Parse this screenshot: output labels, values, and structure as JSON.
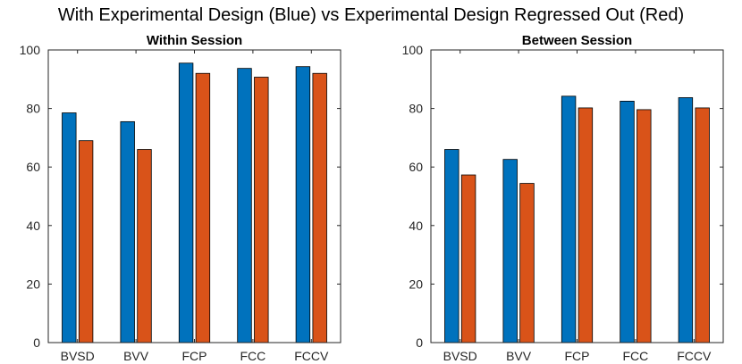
{
  "figure_title": "With Experimental Design (Blue) vs Experimental Design Regressed Out (Red)",
  "colors": {
    "series_1": "#0072BD",
    "series_2": "#D95319"
  },
  "chart_data": [
    {
      "type": "bar",
      "title": "Within Session",
      "categories": [
        "BVSD",
        "BVV",
        "FCP",
        "FCC",
        "FCCV"
      ],
      "series": [
        {
          "name": "With Experimental Design",
          "color": "#0072BD",
          "values": [
            78.5,
            75.5,
            95.5,
            93.7,
            94.3
          ]
        },
        {
          "name": "Experimental Design Regressed Out",
          "color": "#D95319",
          "values": [
            69.0,
            66.0,
            92.0,
            90.7,
            92.0
          ]
        }
      ],
      "ylim": [
        0,
        100
      ],
      "yticks": [
        0,
        20,
        40,
        60,
        80,
        100
      ],
      "xlabel": "",
      "ylabel": ""
    },
    {
      "type": "bar",
      "title": "Between Session",
      "categories": [
        "BVSD",
        "BVV",
        "FCP",
        "FCC",
        "FCCV"
      ],
      "series": [
        {
          "name": "With Experimental Design",
          "color": "#0072BD",
          "values": [
            66.0,
            62.6,
            84.2,
            82.5,
            83.7
          ]
        },
        {
          "name": "Experimental Design Regressed Out",
          "color": "#D95319",
          "values": [
            57.3,
            54.4,
            80.2,
            79.6,
            80.2
          ]
        }
      ],
      "ylim": [
        0,
        100
      ],
      "yticks": [
        0,
        20,
        40,
        60,
        80,
        100
      ],
      "xlabel": "",
      "ylabel": ""
    }
  ]
}
